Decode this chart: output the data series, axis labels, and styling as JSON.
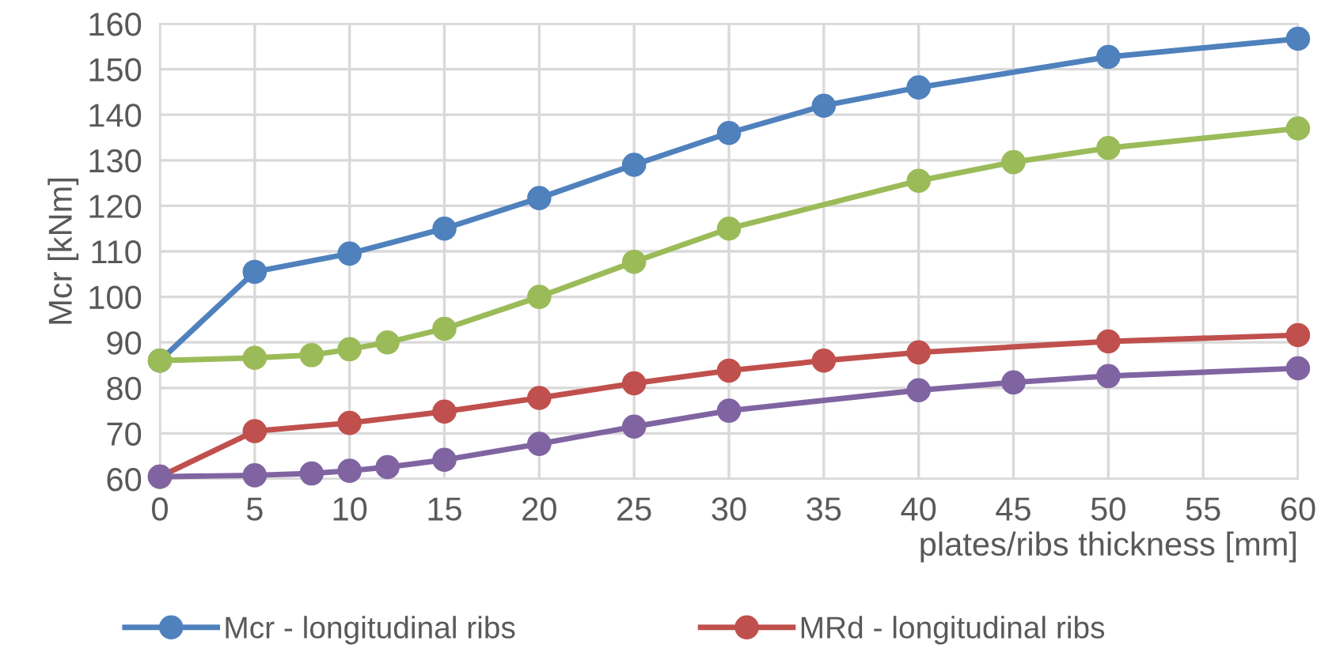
{
  "chart_data": {
    "type": "line",
    "xlabel": "plates/ribs thickness [mm]",
    "ylabel": "Mcr [kNm]",
    "xlim": [
      0,
      60
    ],
    "xticks": [
      0,
      5,
      10,
      15,
      20,
      25,
      30,
      35,
      40,
      45,
      50,
      55,
      60
    ],
    "ylim": [
      60,
      160
    ],
    "yticks": [
      60,
      70,
      80,
      90,
      100,
      110,
      120,
      130,
      140,
      150,
      160
    ],
    "grid": true,
    "legend": "bottom",
    "marker": "circle",
    "line_style": "solid",
    "series": [
      {
        "name": "Mcr - longitudinal ribs",
        "color": "#4f81bd",
        "x": [
          0,
          5,
          10,
          15,
          20,
          25,
          30,
          35,
          40,
          50,
          60
        ],
        "values": [
          86,
          105.5,
          109.5,
          115,
          121.7,
          129,
          136,
          142,
          146,
          152.7,
          156.7
        ]
      },
      {
        "color": "#9bbb59",
        "x": [
          0,
          5,
          8,
          10,
          12,
          15,
          20,
          25,
          30,
          40,
          45,
          50,
          60
        ],
        "values": [
          86,
          86.6,
          87.2,
          88.5,
          90,
          93,
          100,
          107.7,
          115,
          125.5,
          129.6,
          132.7,
          137
        ]
      },
      {
        "name": "MRd - longitudinal ribs",
        "color": "#c0504d",
        "x": [
          0,
          5,
          10,
          15,
          20,
          25,
          30,
          35,
          40,
          50,
          60
        ],
        "values": [
          60.5,
          70.5,
          72.3,
          74.8,
          77.8,
          81,
          83.8,
          86,
          87.8,
          90.2,
          91.6
        ]
      },
      {
        "color": "#8064a2",
        "x": [
          0,
          5,
          8,
          10,
          12,
          15,
          20,
          25,
          30,
          40,
          45,
          50,
          60
        ],
        "values": [
          60.5,
          60.8,
          61.2,
          61.8,
          62.6,
          64.2,
          67.7,
          71.5,
          75,
          79.5,
          81.2,
          82.6,
          84.3
        ]
      }
    ]
  }
}
